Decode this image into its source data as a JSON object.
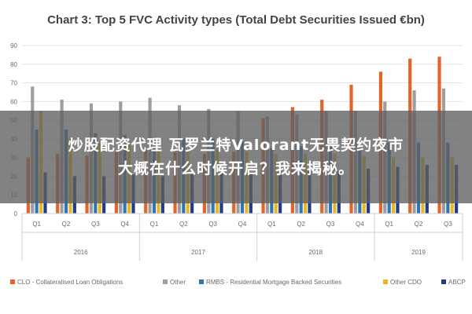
{
  "chart_data": {
    "type": "bar",
    "title": "Chart 3: Top 5 FVC Activity types (Total Debt Securities Issued €bn)",
    "xlabel": "",
    "ylabel": "",
    "ylim": [
      0,
      90
    ],
    "yticks": [
      0,
      10,
      20,
      30,
      40,
      50,
      60,
      70,
      80,
      90
    ],
    "grid": true,
    "legend_position": "bottom",
    "categories": [
      "Q1",
      "Q2",
      "Q3",
      "Q4",
      "Q1",
      "Q2",
      "Q3",
      "Q4",
      "Q1",
      "Q2",
      "Q3",
      "Q4",
      "Q1",
      "Q2",
      "Q3"
    ],
    "years": [
      {
        "label": "2016",
        "quarters": 4
      },
      {
        "label": "2017",
        "quarters": 4
      },
      {
        "label": "2018",
        "quarters": 4
      },
      {
        "label": "2019",
        "quarters": 3
      }
    ],
    "series": [
      {
        "name": "CLO - Collateralised Loan Obligations",
        "color": "#e0652a",
        "values": [
          30,
          32,
          31,
          33,
          34,
          33,
          32,
          33,
          51,
          57,
          61,
          69,
          76,
          83,
          84
        ]
      },
      {
        "name": "Other",
        "color": "#9e9e9e",
        "values": [
          68,
          61,
          59,
          60,
          62,
          58,
          56,
          55,
          52,
          53,
          55,
          55,
          60,
          66,
          67
        ]
      },
      {
        "name": "RMBS - Residential Mortgage Backed Securities",
        "color": "#2e75b6",
        "values": [
          45,
          45,
          43,
          42,
          41,
          40,
          40,
          39,
          35,
          36,
          36,
          36,
          38,
          38,
          38
        ]
      },
      {
        "name": "Other CDO",
        "color": "#e8b923",
        "values": [
          55,
          40,
          38,
          37,
          36,
          34,
          34,
          33,
          32,
          32,
          32,
          31,
          30,
          30,
          30
        ]
      },
      {
        "name": "ABCP",
        "color": "#1f3c88",
        "values": [
          22,
          20,
          20,
          21,
          20,
          21,
          22,
          22,
          22,
          23,
          23,
          24,
          25,
          26,
          26
        ]
      }
    ]
  },
  "overlay": {
    "line1": "炒股配资代理 瓦罗兰特Valorant无畏契约夜市",
    "line2": "大概在什么时候开启？我来揭秘。"
  }
}
